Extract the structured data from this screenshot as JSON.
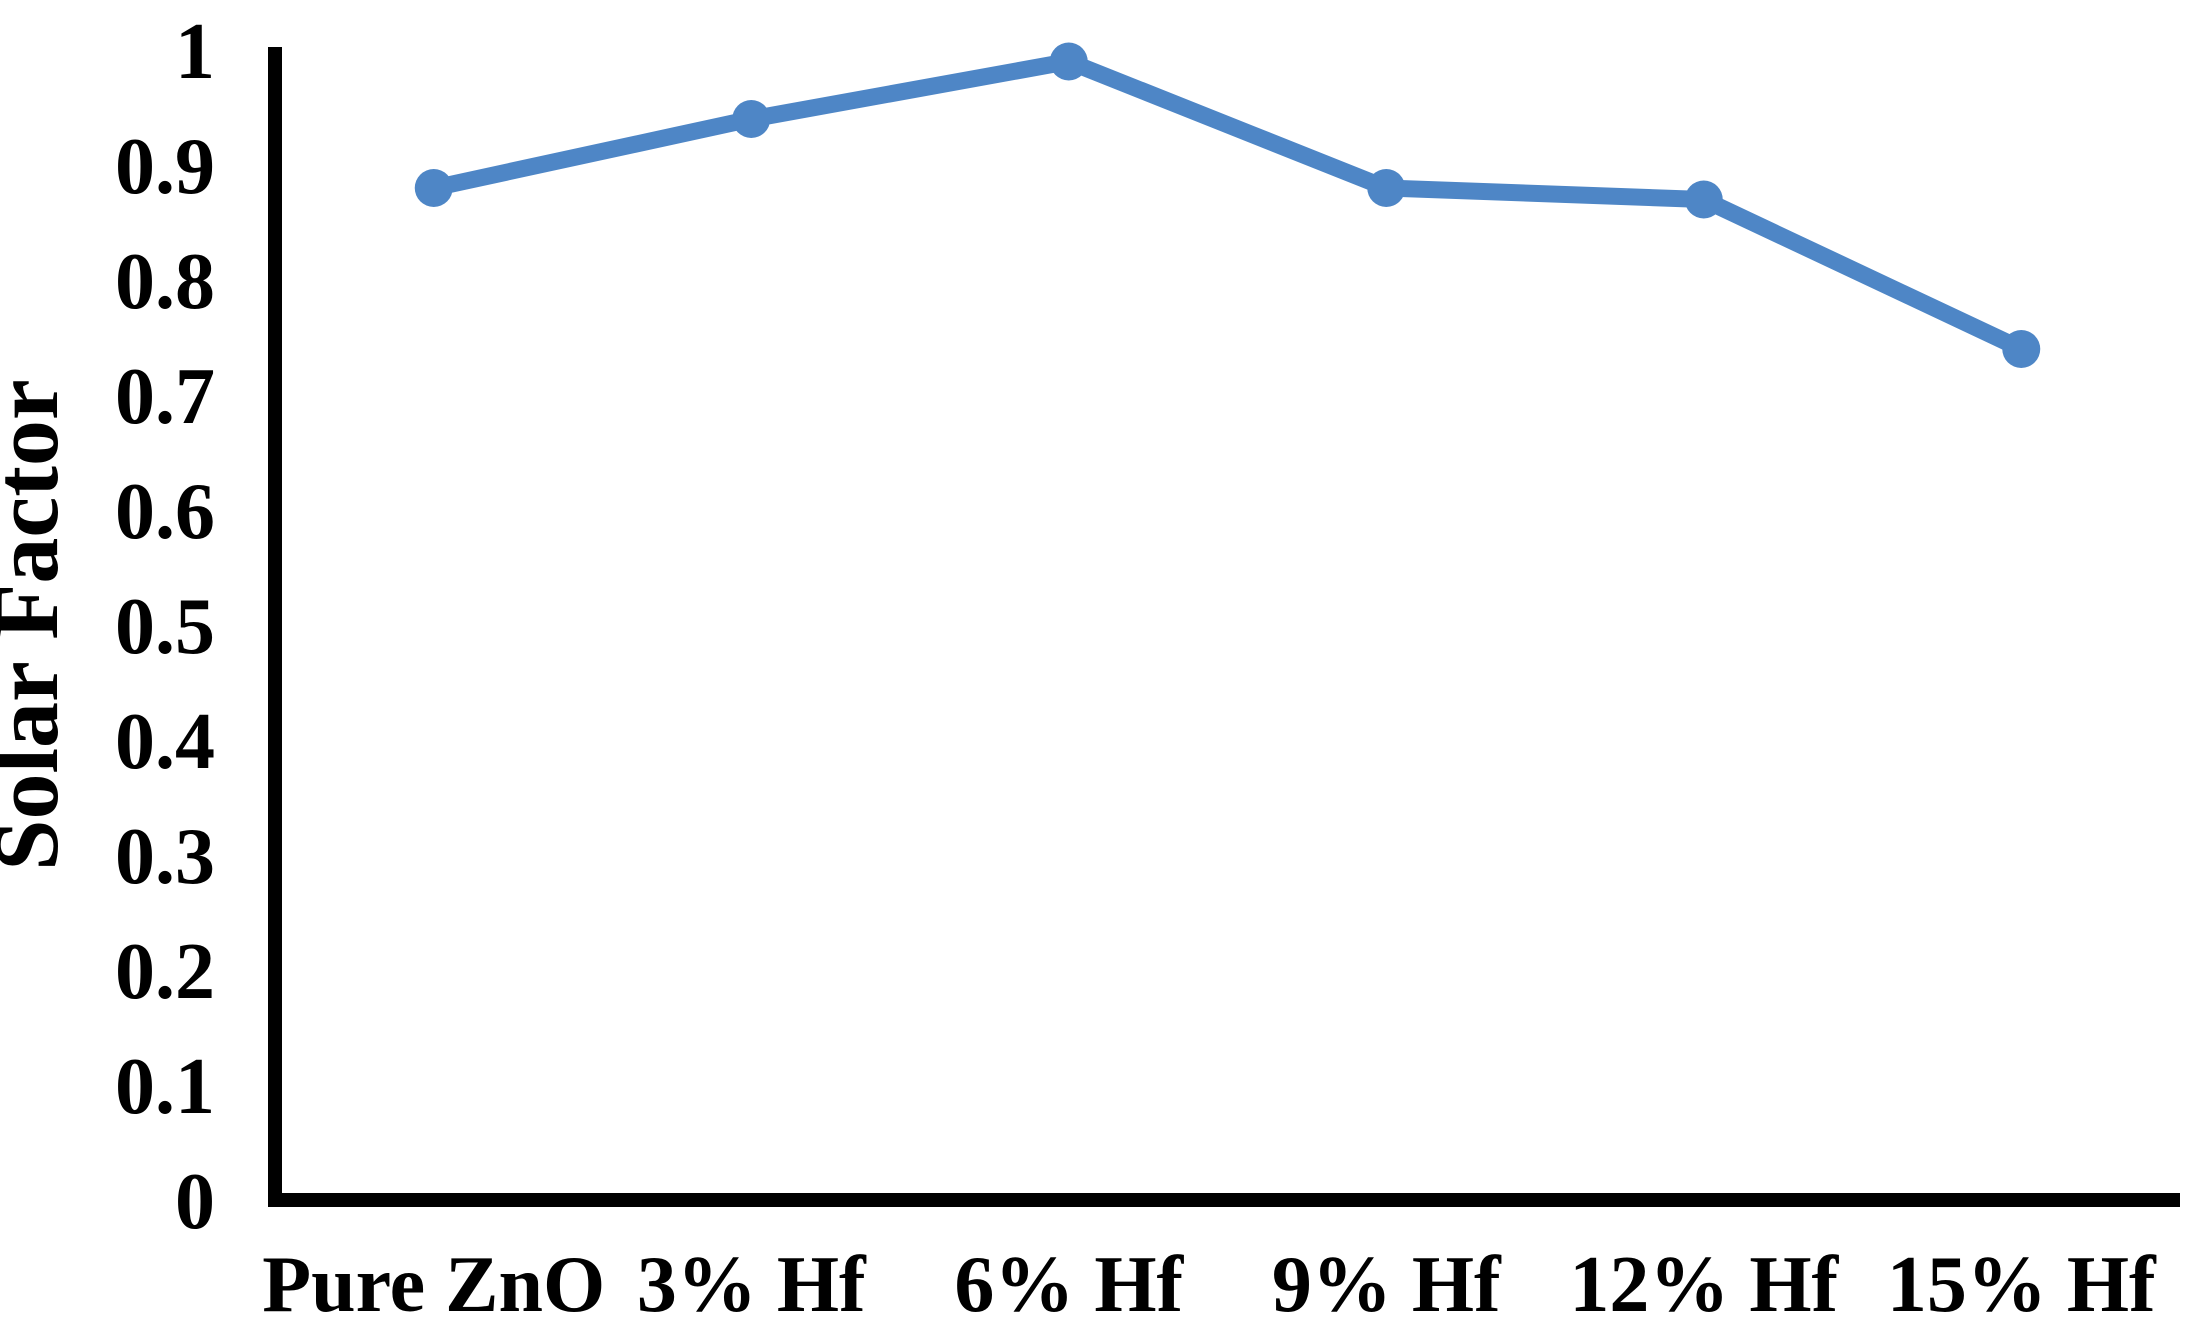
{
  "figure": {
    "background": "#ffffff"
  },
  "chart_data": {
    "type": "line",
    "ylabel": "Solar Factor",
    "categories": [
      "Pure ZnO",
      "3% Hf",
      "6% Hf",
      "9% Hf",
      "12% Hf",
      "15% Hf"
    ],
    "series": [
      {
        "name": "Solar Factor",
        "values": [
          0.88,
          0.94,
          0.99,
          0.88,
          0.87,
          0.74
        ]
      }
    ],
    "ylim": [
      0,
      1
    ],
    "ytick_step": 0.1,
    "ytick_labels": [
      "0",
      "0.1",
      "0.2",
      "0.3",
      "0.4",
      "0.5",
      "0.6",
      "0.7",
      "0.8",
      "0.9",
      "1"
    ],
    "grid": false,
    "legend": "none",
    "line_color": "#4E86C6",
    "marker": "circle",
    "axis_color": "#000000",
    "text_color": "#000000"
  }
}
